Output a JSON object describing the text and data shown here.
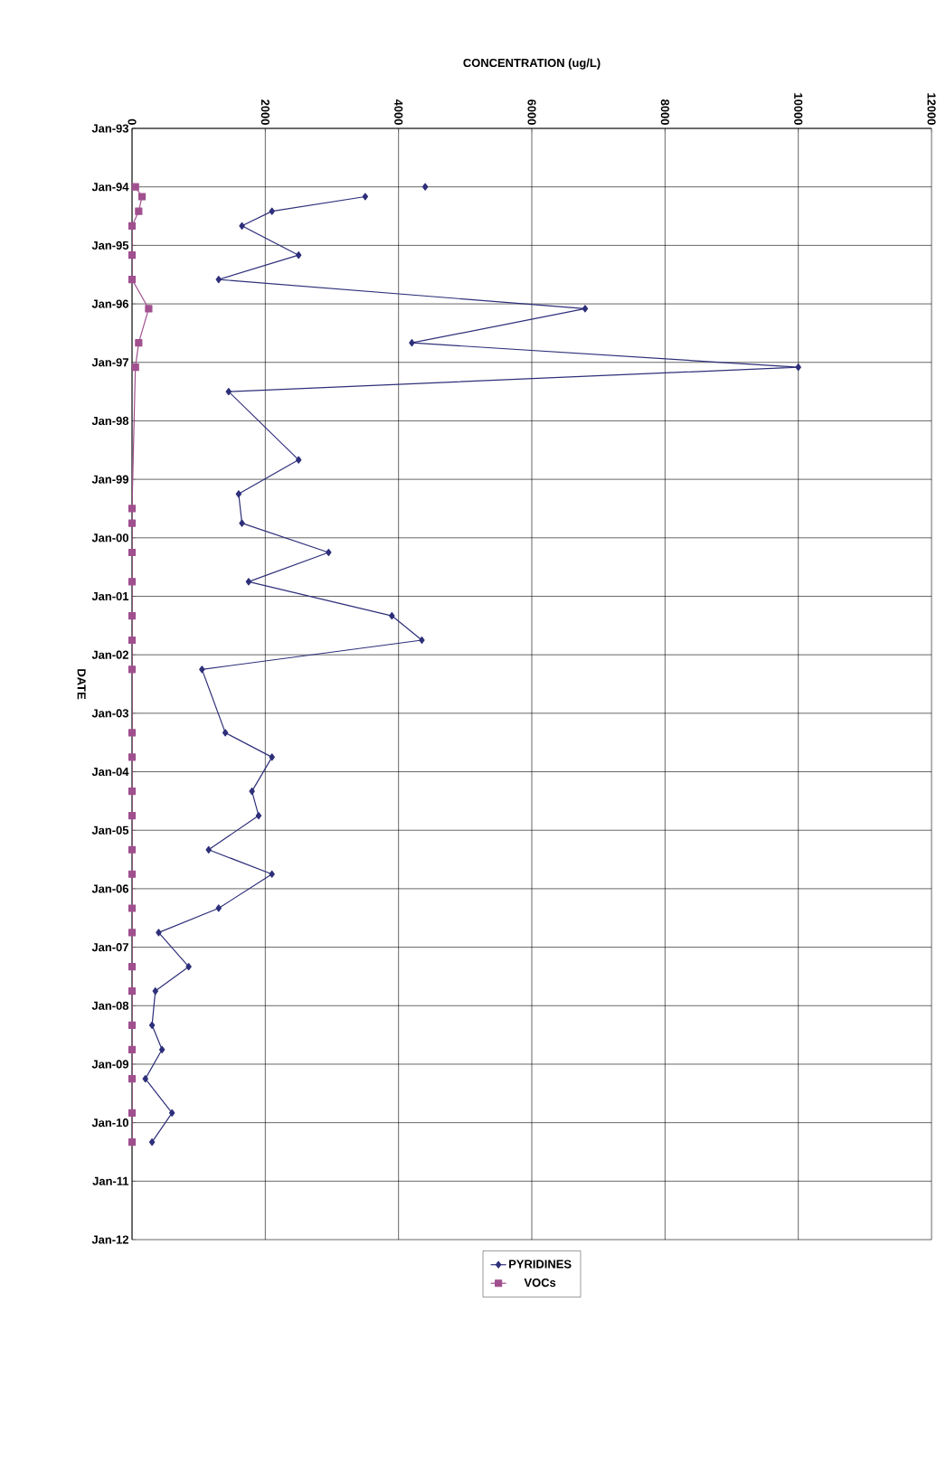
{
  "chart_data": {
    "type": "line",
    "orientation": "horizontal",
    "xlabel": "CONCENTRATION (ug/L)",
    "ylabel": "DATE",
    "xlim": [
      0,
      12000
    ],
    "xticks": [
      0,
      2000,
      4000,
      6000,
      8000,
      10000,
      12000
    ],
    "ylim": [
      "2012-01",
      "1993-01"
    ],
    "yticks": [
      {
        "value": "1993-01",
        "label": "Jan-93"
      },
      {
        "value": "1994-01",
        "label": "Jan-94"
      },
      {
        "value": "1995-01",
        "label": "Jan-95"
      },
      {
        "value": "1996-01",
        "label": "Jan-96"
      },
      {
        "value": "1997-01",
        "label": "Jan-97"
      },
      {
        "value": "1998-01",
        "label": "Jan-98"
      },
      {
        "value": "1999-01",
        "label": "Jan-99"
      },
      {
        "value": "2000-01",
        "label": "Jan-00"
      },
      {
        "value": "2001-01",
        "label": "Jan-01"
      },
      {
        "value": "2002-01",
        "label": "Jan-02"
      },
      {
        "value": "2003-01",
        "label": "Jan-03"
      },
      {
        "value": "2004-01",
        "label": "Jan-04"
      },
      {
        "value": "2005-01",
        "label": "Jan-05"
      },
      {
        "value": "2006-01",
        "label": "Jan-06"
      },
      {
        "value": "2007-01",
        "label": "Jan-07"
      },
      {
        "value": "2008-01",
        "label": "Jan-08"
      },
      {
        "value": "2009-01",
        "label": "Jan-09"
      },
      {
        "value": "2010-01",
        "label": "Jan-10"
      },
      {
        "value": "2011-01",
        "label": "Jan-11"
      },
      {
        "value": "2012-01",
        "label": "Jan-12"
      }
    ],
    "grid": true,
    "legend": "bottom",
    "series": [
      {
        "name": "PYRIDINES",
        "color": "#2e2f7a",
        "marker": "diamond",
        "x": [
          "1994-01",
          "1994-02",
          "1994-03",
          "1994-06",
          "1994-09",
          "1995-03",
          "1995-08",
          "1996-02",
          "1996-09",
          "1997-02",
          "1997-07",
          "1998-09",
          "1999-04",
          "1999-10",
          "2000-04",
          "2000-10",
          "2001-05",
          "2001-10",
          "2002-04",
          "2003-05",
          "2003-10",
          "2004-05",
          "2004-10",
          "2005-05",
          "2005-10",
          "2006-05",
          "2006-10",
          "2007-05",
          "2007-10",
          "2008-05",
          "2008-10",
          "2009-04",
          "2009-11",
          "2010-05"
        ],
        "values": [
          4400,
          null,
          3500,
          2100,
          1650,
          2500,
          1300,
          6800,
          4200,
          10000,
          1450,
          2500,
          1600,
          1650,
          2950,
          1750,
          3900,
          4350,
          1050,
          1400,
          2100,
          1800,
          1900,
          1150,
          2100,
          1300,
          400,
          850,
          350,
          300,
          450,
          200,
          600,
          300
        ]
      },
      {
        "name": "VOCs",
        "color": "#a0508f",
        "marker": "square",
        "x": [
          "1994-01",
          "1994-03",
          "1994-06",
          "1994-09",
          "1995-03",
          "1995-08",
          "1996-02",
          "1996-09",
          "1997-02",
          "1999-07",
          "1999-10",
          "2000-04",
          "2000-10",
          "2001-05",
          "2001-10",
          "2002-04",
          "2003-05",
          "2003-10",
          "2004-05",
          "2004-10",
          "2005-05",
          "2005-10",
          "2006-05",
          "2006-10",
          "2007-05",
          "2007-10",
          "2008-05",
          "2008-10",
          "2009-04",
          "2009-11",
          "2010-05"
        ],
        "values": [
          50,
          150,
          100,
          0,
          0,
          0,
          250,
          100,
          50,
          0,
          0,
          0,
          0,
          0,
          0,
          0,
          0,
          0,
          0,
          0,
          0,
          0,
          0,
          0,
          0,
          0,
          0,
          0,
          0,
          0,
          0
        ]
      }
    ]
  }
}
